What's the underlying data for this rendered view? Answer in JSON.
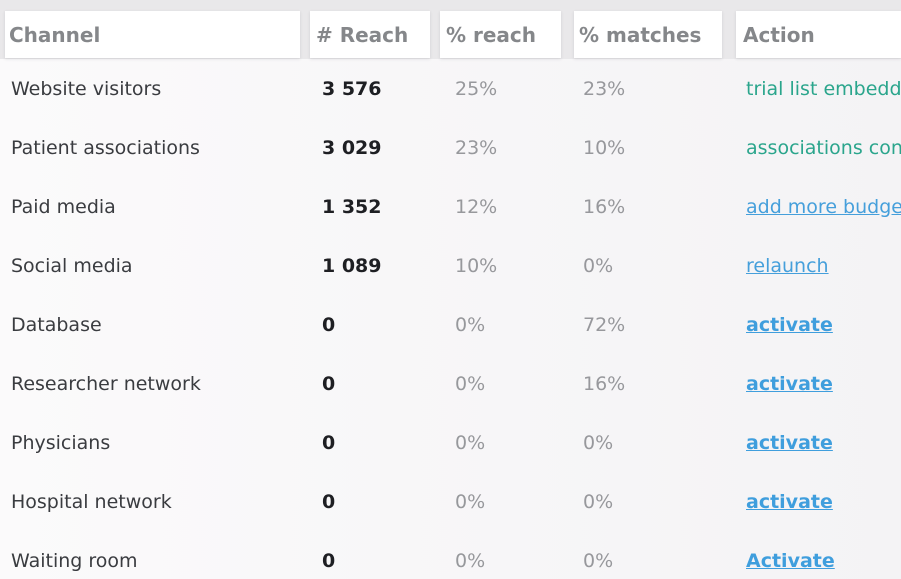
{
  "table": {
    "columns": [
      {
        "key": "channel",
        "label": "Channel"
      },
      {
        "key": "reach",
        "label": "# Reach"
      },
      {
        "key": "pct_reach",
        "label": "% reach"
      },
      {
        "key": "pct_matches",
        "label": "% matches"
      },
      {
        "key": "action",
        "label": "Action"
      }
    ],
    "rows": [
      {
        "channel": "Website visitors",
        "reach": "3 576",
        "pct_reach": "25%",
        "pct_matches": "23%",
        "action": {
          "label": "trial list embedded",
          "style": "green"
        }
      },
      {
        "channel": "Patient associations",
        "reach": "3 029",
        "pct_reach": "23%",
        "pct_matches": "10%",
        "action": {
          "label": "associations contacted",
          "style": "green"
        }
      },
      {
        "channel": "Paid media",
        "reach": "1 352",
        "pct_reach": "12%",
        "pct_matches": "16%",
        "action": {
          "label": "add more budget",
          "style": "link"
        }
      },
      {
        "channel": "Social media",
        "reach": "1 089",
        "pct_reach": "10%",
        "pct_matches": "0%",
        "action": {
          "label": "relaunch",
          "style": "link"
        }
      },
      {
        "channel": "Database",
        "reach": "0",
        "pct_reach": "0%",
        "pct_matches": "72%",
        "action": {
          "label": "activate",
          "style": "link-bold"
        }
      },
      {
        "channel": "Researcher network",
        "reach": "0",
        "pct_reach": "0%",
        "pct_matches": "16%",
        "action": {
          "label": "activate",
          "style": "link-bold"
        }
      },
      {
        "channel": "Physicians",
        "reach": "0",
        "pct_reach": "0%",
        "pct_matches": "0%",
        "action": {
          "label": "activate",
          "style": "link-bold"
        }
      },
      {
        "channel": "Hospital network",
        "reach": "0",
        "pct_reach": "0%",
        "pct_matches": "0%",
        "action": {
          "label": "activate",
          "style": "link-bold"
        }
      },
      {
        "channel": "Waiting room",
        "reach": "0",
        "pct_reach": "0%",
        "pct_matches": "0%",
        "action": {
          "label": "Activate",
          "style": "link-bold"
        }
      }
    ]
  },
  "colors": {
    "page_background": "#e9e8ea",
    "header_cell_background": "#ffffff",
    "body_background": "#f7f6f8",
    "header_text": "#85878a",
    "channel_text": "#3a3c40",
    "reach_text": "#1e1f23",
    "percent_text": "#97989c",
    "action_green": "#2aa58c",
    "action_blue": "#459fdb"
  }
}
